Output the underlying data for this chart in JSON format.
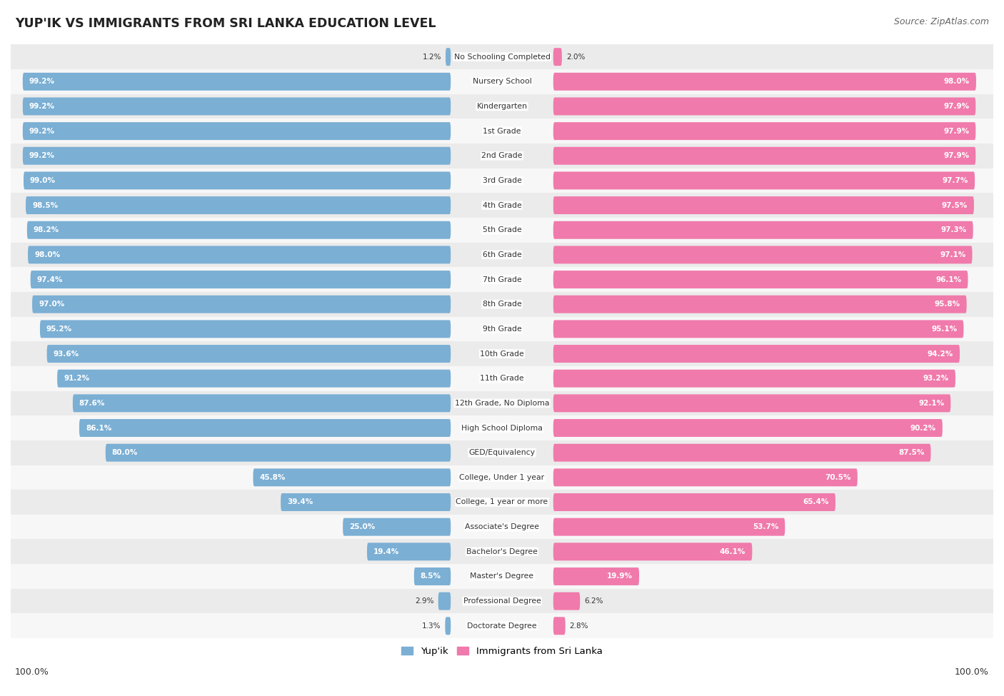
{
  "title": "YUP'IK VS IMMIGRANTS FROM SRI LANKA EDUCATION LEVEL",
  "source": "Source: ZipAtlas.com",
  "categories": [
    "No Schooling Completed",
    "Nursery School",
    "Kindergarten",
    "1st Grade",
    "2nd Grade",
    "3rd Grade",
    "4th Grade",
    "5th Grade",
    "6th Grade",
    "7th Grade",
    "8th Grade",
    "9th Grade",
    "10th Grade",
    "11th Grade",
    "12th Grade, No Diploma",
    "High School Diploma",
    "GED/Equivalency",
    "College, Under 1 year",
    "College, 1 year or more",
    "Associate's Degree",
    "Bachelor's Degree",
    "Master's Degree",
    "Professional Degree",
    "Doctorate Degree"
  ],
  "yupik_values": [
    1.2,
    99.2,
    99.2,
    99.2,
    99.2,
    99.0,
    98.5,
    98.2,
    98.0,
    97.4,
    97.0,
    95.2,
    93.6,
    91.2,
    87.6,
    86.1,
    80.0,
    45.8,
    39.4,
    25.0,
    19.4,
    8.5,
    2.9,
    1.3
  ],
  "srilanka_values": [
    2.0,
    98.0,
    97.9,
    97.9,
    97.9,
    97.7,
    97.5,
    97.3,
    97.1,
    96.1,
    95.8,
    95.1,
    94.2,
    93.2,
    92.1,
    90.2,
    87.5,
    70.5,
    65.4,
    53.7,
    46.1,
    19.9,
    6.2,
    2.8
  ],
  "yupik_color": "#7bafd4",
  "srilanka_color": "#f07aab",
  "bg_row_even": "#ebebeb",
  "bg_row_odd": "#f7f7f7",
  "max_val": 100
}
